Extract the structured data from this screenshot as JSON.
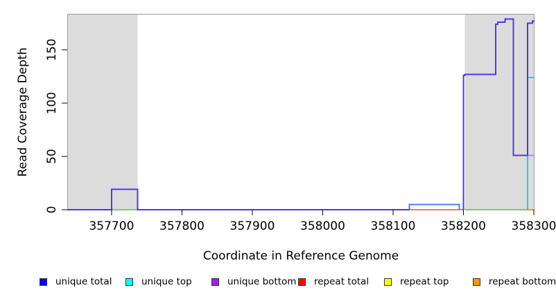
{
  "chart_data": {
    "type": "line",
    "subtype": "step-coverage",
    "title": "",
    "xlabel": "Coordinate in Reference Genome",
    "ylabel": "Read Coverage Depth",
    "x_ticks": [
      357700,
      357800,
      357900,
      358000,
      358100,
      358200,
      358300
    ],
    "y_ticks": [
      0,
      50,
      100,
      150
    ],
    "xlim": [
      357637,
      358301
    ],
    "ylim": [
      0,
      183.8
    ],
    "grid": false,
    "repeat_region_fill": "#dcdcdc",
    "plot_border_color": "#9c9c9c",
    "repeat_regions": [
      [
        357637,
        357737
      ],
      [
        358202,
        358301
      ]
    ],
    "series": [
      {
        "name": "repeat-total-baseline",
        "color": "#e87878",
        "points": [
          [
            358123,
            0
          ],
          [
            358200,
            0
          ]
        ]
      },
      {
        "name": "blend-baseline-left",
        "color": "#7cc87c",
        "points": [
          [
            357701,
            0
          ],
          [
            357737,
            0
          ]
        ]
      },
      {
        "name": "blend-baseline-right",
        "color": "#7cc87c",
        "points": [
          [
            358202,
            0
          ],
          [
            358287,
            0
          ]
        ]
      },
      {
        "name": "repeat-bottom-baseline",
        "color": "#ff9500",
        "points": [
          [
            358287,
            0
          ],
          [
            358301,
            0
          ]
        ]
      },
      {
        "name": "unique-top-line",
        "color": "#1ad6d6",
        "points": [
          [
            358291,
            0
          ],
          [
            358291,
            124
          ],
          [
            358301,
            124
          ]
        ]
      },
      {
        "name": "unique-bottom-51-line",
        "color": "#c77dfa",
        "points": [
          [
            358291,
            51
          ],
          [
            358301,
            51
          ]
        ]
      },
      {
        "name": "unique-total-step-line",
        "color": "#4f7df0",
        "points": [
          [
            358123,
            0
          ],
          [
            358123,
            5
          ],
          [
            358194,
            5
          ],
          [
            358194,
            0
          ]
        ]
      },
      {
        "name": "unique-main-left-line",
        "color": "#5237e0",
        "points": [
          [
            357637,
            0
          ],
          [
            357700,
            0
          ],
          [
            357700,
            19
          ],
          [
            357737,
            19
          ],
          [
            357737,
            0
          ],
          [
            358123,
            0
          ]
        ]
      },
      {
        "name": "unique-main-right-line",
        "color": "#5237e0",
        "points": [
          [
            358200,
            0
          ],
          [
            358200,
            126
          ],
          [
            358202,
            126
          ],
          [
            358202,
            127
          ],
          [
            358246,
            127
          ],
          [
            358246,
            174
          ],
          [
            358249,
            174
          ],
          [
            358249,
            176
          ],
          [
            358259,
            176
          ],
          [
            358259,
            179
          ],
          [
            358271,
            179
          ],
          [
            358271,
            51
          ],
          [
            358291,
            51
          ],
          [
            358291,
            175
          ],
          [
            358298,
            175
          ],
          [
            358298,
            177
          ],
          [
            358301,
            177
          ]
        ]
      }
    ],
    "legend": [
      {
        "label": "unique total",
        "color": "#0000ff"
      },
      {
        "label": "unique top",
        "color": "#00ffff"
      },
      {
        "label": "unique bottom",
        "color": "#a020f0"
      },
      {
        "label": "repeat total",
        "color": "#ff0000"
      },
      {
        "label": "repeat top",
        "color": "#ffff00"
      },
      {
        "label": "repeat bottom",
        "color": "#ff9500"
      }
    ]
  }
}
